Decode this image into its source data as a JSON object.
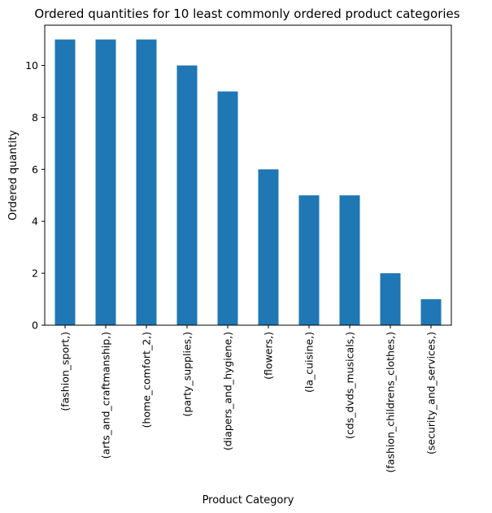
{
  "chart_data": {
    "type": "bar",
    "title": "Ordered quantities for 10 least commonly ordered product categories",
    "xlabel": "Product Category",
    "ylabel": "Ordered quantity",
    "categories": [
      "(fashion_sport,)",
      "(arts_and_craftmanship,)",
      "(home_comfort_2,)",
      "(party_supplies,)",
      "(diapers_and_hygiene,)",
      "(flowers,)",
      "(la_cuisine,)",
      "(cds_dvds_musicals,)",
      "(fashion_childrens_clothes,)",
      "(security_and_services,)"
    ],
    "values": [
      11,
      11,
      11,
      10,
      9,
      6,
      5,
      5,
      2,
      1
    ],
    "ylim": [
      0,
      11.55
    ],
    "yticks": [
      0,
      2,
      4,
      6,
      8,
      10
    ],
    "grid": false,
    "legend": "none",
    "bar_color": "#1f77b4"
  }
}
